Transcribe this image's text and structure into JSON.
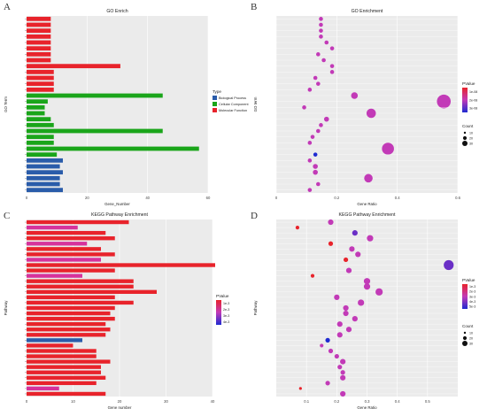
{
  "panel_letters": [
    "A",
    "B",
    "C",
    "D"
  ],
  "colors": {
    "biological_process": "#2a5caa",
    "cellular_component": "#1aa51a",
    "molecular_function": "#e8232b",
    "kegg_bar_crimson": "#e8232b",
    "kegg_bar_pink": "#d6329c",
    "kegg_bar_purple": "#c13cbd",
    "kegg_bar_blue": "#2a5caa",
    "panel_bg": "#ebebeb",
    "grid": "#ffffff"
  },
  "legends": {
    "type_title": "Type",
    "type_items": [
      "Biological Process",
      "Cellular Component",
      "Molecular Function"
    ],
    "pvalue_title": "PValue",
    "pvalue_ticks_go": [
      "1e-08",
      "2e-08",
      "3e-08"
    ],
    "pvalue_ticks_kegg_bar": [
      "1e-3",
      "2e-3",
      "3e-3",
      "4e-3"
    ],
    "pvalue_ticks_kegg_dot": [
      "1e-3",
      "2e-3",
      "3e-3",
      "4e-3",
      "5e-3"
    ],
    "count_title": "Count",
    "count_values_go": [
      "10",
      "20",
      "30"
    ],
    "count_values_kegg": [
      "10",
      "20",
      "30"
    ]
  },
  "chart_data": [
    {
      "panel": "A",
      "type": "bar",
      "orientation": "horizontal",
      "title": "GO Enrich",
      "xlabel": "Gene_Number",
      "ylabel": "GO Term",
      "xlim": [
        0,
        60
      ],
      "xticks": [
        "0",
        "20",
        "40",
        "60"
      ],
      "categories": [
        "",
        "",
        "",
        "",
        "",
        "",
        "",
        "",
        "",
        "",
        "",
        "",
        "",
        "",
        "",
        "",
        "",
        "",
        "",
        "",
        "",
        "",
        "",
        "",
        "",
        "",
        "",
        "",
        "",
        ""
      ],
      "values": [
        8,
        8,
        8,
        8,
        8,
        8,
        8,
        8,
        31,
        9,
        9,
        9,
        9,
        45,
        7,
        6,
        6,
        8,
        9,
        45,
        9,
        9,
        57,
        10,
        12,
        11,
        12,
        11,
        11,
        12
      ],
      "groups": [
        "MF",
        "MF",
        "MF",
        "MF",
        "MF",
        "MF",
        "MF",
        "MF",
        "MF",
        "MF",
        "MF",
        "MF",
        "MF",
        "CC",
        "CC",
        "CC",
        "CC",
        "CC",
        "CC",
        "CC",
        "CC",
        "CC",
        "CC",
        "CC",
        "BP",
        "BP",
        "BP",
        "BP",
        "BP",
        "BP"
      ],
      "grid": true,
      "legend_position": "right"
    },
    {
      "panel": "B",
      "type": "scatter",
      "title": "GO Enrichment",
      "xlabel": "Gene Ratio",
      "ylabel": "GO term",
      "xlim": [
        0,
        0.65
      ],
      "xticks": [
        "0",
        "0.2",
        "0.4",
        "0.6"
      ],
      "categories": [
        "",
        "",
        "",
        "",
        "",
        "",
        "",
        "",
        "",
        "",
        "",
        "",
        "",
        "",
        "",
        "",
        "",
        "",
        "",
        "",
        "",
        "",
        "",
        "",
        "",
        "",
        "",
        "",
        "",
        ""
      ],
      "x": [
        0.16,
        0.16,
        0.16,
        0.16,
        0.18,
        0.2,
        0.15,
        0.17,
        0.2,
        0.2,
        0.14,
        0.15,
        0.12,
        0.28,
        0.6,
        0.1,
        0.34,
        0.18,
        0.16,
        0.15,
        0.13,
        0.12,
        0.4,
        0.14,
        0.12,
        0.14,
        0.14,
        0.33,
        0.15,
        0.12
      ],
      "sizes": [
        3,
        3,
        3,
        3,
        3,
        3,
        3,
        3,
        3,
        3,
        3,
        3,
        3,
        6,
        14,
        3,
        9,
        4,
        3,
        3,
        3,
        3,
        12,
        3,
        3,
        4,
        4,
        8,
        3,
        3
      ],
      "pvalue": [
        3,
        3,
        3,
        3,
        3,
        3,
        3,
        3,
        3,
        3,
        3,
        3,
        3,
        3,
        3,
        3,
        3,
        3,
        3,
        3,
        3,
        3,
        3,
        1,
        3,
        3,
        3,
        3,
        3,
        3
      ],
      "grid": true,
      "legend_position": "right"
    },
    {
      "panel": "C",
      "type": "bar",
      "orientation": "horizontal",
      "title": "KEGG Pathway Enrichment",
      "xlabel": "Gene number",
      "ylabel": "Pathway",
      "xlim": [
        0,
        40
      ],
      "xticks": [
        "0",
        "10",
        "20",
        "30",
        "40"
      ],
      "categories": [
        "",
        "",
        "",
        "",
        "",
        "",
        "",
        "",
        "",
        "",
        "",
        "",
        "",
        "",
        "",
        "",
        "",
        "",
        "",
        "",
        "",
        "",
        "",
        "",
        "",
        "",
        "",
        "",
        "",
        "",
        "",
        "",
        ""
      ],
      "values": [
        22,
        11,
        17,
        19,
        13,
        16,
        19,
        16,
        41,
        19,
        12,
        23,
        23,
        28,
        19,
        23,
        19,
        18,
        19,
        17,
        18,
        17,
        12,
        10,
        15,
        15,
        18,
        16,
        16,
        17,
        15,
        7,
        17
      ],
      "pvalue": [
        3,
        4,
        2,
        3,
        4,
        3,
        3,
        4,
        2,
        3,
        4,
        3,
        3,
        3,
        3,
        3,
        3,
        3,
        3,
        3,
        3,
        3,
        1,
        3,
        3,
        3,
        3,
        3,
        3,
        3,
        3,
        4,
        3
      ],
      "grid": true,
      "legend_position": "right"
    },
    {
      "panel": "D",
      "type": "scatter",
      "title": "KEGG Pathway Enrichment",
      "xlabel": "Gene Ratio",
      "ylabel": "Pathway",
      "xlim": [
        0,
        0.6
      ],
      "xticks": [
        "0.1",
        "0.2",
        "0.3",
        "0.4",
        "0.5"
      ],
      "categories": [
        "",
        "",
        "",
        "",
        "",
        "",
        "",
        "",
        "",
        "",
        "",
        "",
        "",
        "",
        "",
        "",
        "",
        "",
        "",
        "",
        "",
        "",
        "",
        "",
        "",
        "",
        "",
        "",
        "",
        "",
        "",
        "",
        ""
      ],
      "x": [
        0.18,
        0.07,
        0.26,
        0.31,
        0.18,
        0.25,
        0.27,
        0.23,
        0.57,
        0.24,
        0.12,
        0.3,
        0.3,
        0.34,
        0.2,
        0.28,
        0.23,
        0.23,
        0.26,
        0.21,
        0.24,
        0.21,
        0.17,
        0.15,
        0.18,
        0.2,
        0.22,
        0.21,
        0.22,
        0.22,
        0.17,
        0.08,
        0.22
      ],
      "sizes": [
        5,
        3,
        5,
        6,
        4,
        5,
        5,
        4,
        10,
        5,
        3,
        6,
        6,
        7,
        5,
        6,
        5,
        5,
        5,
        5,
        5,
        5,
        4,
        3,
        4,
        4,
        5,
        4,
        4,
        5,
        4,
        2,
        5
      ],
      "pvalue": [
        3,
        4,
        2,
        3,
        4,
        3,
        3,
        4,
        2,
        3,
        4,
        3,
        3,
        3,
        3,
        3,
        3,
        3,
        3,
        3,
        3,
        3,
        1,
        3,
        3,
        3,
        3,
        3,
        3,
        3,
        3,
        4,
        3
      ],
      "grid": true,
      "legend_position": "right"
    }
  ]
}
